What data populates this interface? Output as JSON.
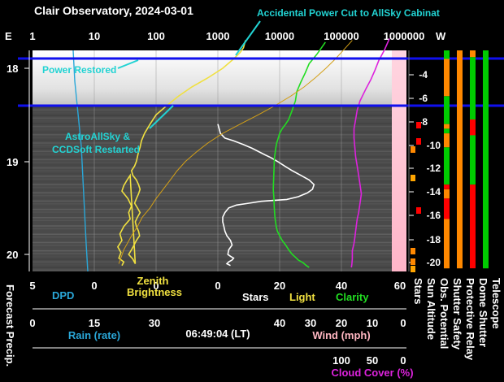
{
  "title": "Clair Observatory, 2024-03-01",
  "time_lt": "06:49:04 (LT)",
  "top_axis": {
    "left_letter": "E",
    "right_letter": "W",
    "ticks": [
      "1",
      "10",
      "100",
      "1000",
      "10000",
      "100000",
      "1000000"
    ]
  },
  "time_axis": {
    "ticks": [
      "18",
      "19",
      "20"
    ]
  },
  "sun_altitude_axis": {
    "ticks": [
      "-4",
      "-6",
      "-8",
      "-10",
      "-12",
      "-14",
      "-16",
      "-18",
      "-20"
    ]
  },
  "annotations": {
    "power_cut": "Accidental Power Cut to AllSky Cabinat",
    "power_restored": "Power Restored",
    "restart_line1": "AstroAllSky &",
    "restart_line2": "CCDSoft Restarted"
  },
  "bottom_scale1": {
    "ticks": [
      "5",
      "0",
      "0",
      "0",
      "20",
      "40",
      "60"
    ],
    "labels": {
      "dpd": "DPD",
      "zenith_line1": "Zenith",
      "zenith_line2": "Brightness",
      "stars": "Stars",
      "light": "Light",
      "clarity": "Clarity"
    }
  },
  "rain_scale": {
    "ticks": [
      "0",
      "15",
      "30"
    ],
    "label": "Rain (rate)"
  },
  "wind_scale": {
    "ticks": [
      "40",
      "30",
      "20",
      "10",
      "0"
    ],
    "label": "Wind (mph)"
  },
  "cloud_scale": {
    "ticks": [
      "100",
      "50",
      "0"
    ],
    "label": "Cloud Cover (%)"
  },
  "vertical_labels": {
    "forecast": "Forecast Precip.",
    "stars": "Stars",
    "sun_alt": "Sun Altitude",
    "obs_potential": "Obs. Potential",
    "shutter_safety": "Shutter Safety",
    "protective_relay": "Protective Relay",
    "dome_shutter": "Dome Shutter",
    "telescope": "Telescope"
  },
  "colors": {
    "dpd": "#2aa7d8",
    "zenith": "#f0e040",
    "stars": "#ffffff",
    "light": "#f0e040",
    "clarity": "#22dd22",
    "cloud": "#dd22dd",
    "wind": "#ffb6c1",
    "annotation": "#22d3d3",
    "marker": "#1010ee"
  },
  "chart_data": {
    "type": "line",
    "x_scale": "log",
    "x_range": [
      1,
      1000000
    ],
    "y_label": "",
    "y_range_hours": [
      17.65,
      20.15
    ],
    "markers_hours": [
      17.83,
      18.55
    ],
    "series": [
      {
        "name": "Zenith Brightness",
        "x": [
          2800,
          2600,
          2300,
          1800,
          1200,
          700,
          380,
          230,
          150,
          100,
          80,
          65,
          58,
          55,
          52,
          50,
          48,
          45,
          40,
          42,
          48,
          52,
          55,
          52,
          48,
          45,
          50,
          55,
          50,
          46,
          48,
          52,
          54,
          48,
          44,
          40,
          36,
          42,
          46,
          38,
          34,
          30,
          28,
          35,
          40,
          36,
          38,
          30,
          26,
          28,
          24,
          27,
          25,
          30,
          28
        ],
        "y": [
          17.7,
          17.78,
          17.83,
          17.9,
          18.0,
          18.1,
          18.2,
          18.3,
          18.4,
          18.5,
          18.6,
          18.7,
          18.78,
          18.85,
          18.9,
          18.95,
          19.0,
          19.05,
          19.1,
          19.15,
          19.2,
          19.25,
          19.3,
          19.35,
          19.4,
          19.45,
          19.5,
          19.55,
          19.6,
          19.65,
          19.7,
          19.75,
          19.8,
          19.85,
          19.9,
          19.95,
          20.0,
          20.05,
          20.1,
          19.15,
          19.2,
          19.26,
          19.32,
          19.4,
          19.48,
          19.55,
          19.62,
          19.7,
          19.78,
          19.85,
          19.92,
          19.98,
          20.04,
          20.08,
          20.12
        ]
      },
      {
        "name": "Stars",
        "x": [
          1000,
          1050,
          1100,
          1300,
          1800,
          2600,
          3600,
          4700,
          5800,
          7200,
          9200,
          12000,
          16000,
          22000,
          30000,
          36000,
          34000,
          28000,
          20000,
          13000,
          8000,
          5000,
          3200,
          2000,
          1500,
          1300,
          1200,
          1200,
          1250,
          1300,
          1400,
          1600,
          1700,
          1500,
          1450,
          1600,
          1800,
          1700,
          1500,
          1400,
          1600
        ],
        "y": [
          18.6,
          18.65,
          18.7,
          18.75,
          18.78,
          18.82,
          18.86,
          18.9,
          18.93,
          18.96,
          19.0,
          19.05,
          19.1,
          19.15,
          19.2,
          19.25,
          19.3,
          19.34,
          19.38,
          19.41,
          19.42,
          19.43,
          19.45,
          19.47,
          19.5,
          19.55,
          19.6,
          19.65,
          19.7,
          19.75,
          19.8,
          19.85,
          19.9,
          19.95,
          20.0,
          20.02,
          20.04,
          20.06,
          20.08,
          20.1,
          20.12
        ]
      },
      {
        "name": "Clarity",
        "x": [
          55000,
          40000,
          30000,
          26000,
          22000,
          19000,
          18000,
          16000,
          14000,
          12500,
          11000,
          10000,
          9500,
          9000,
          8700,
          8500,
          8300,
          8200,
          8100,
          8000,
          7900,
          8100,
          8200,
          8400,
          8800,
          9200,
          10000,
          11000,
          12500,
          14000,
          16000,
          18000,
          20000,
          24000,
          27000,
          30000
        ],
        "y": [
          17.72,
          17.85,
          17.95,
          18.05,
          18.15,
          18.25,
          18.35,
          18.45,
          18.55,
          18.6,
          18.65,
          18.7,
          18.75,
          18.8,
          18.85,
          18.9,
          18.95,
          19.0,
          19.1,
          19.2,
          19.3,
          19.4,
          19.5,
          19.6,
          19.7,
          19.75,
          19.8,
          19.85,
          19.9,
          19.95,
          20.0,
          20.03,
          20.06,
          20.09,
          20.12,
          20.14
        ]
      },
      {
        "name": "Cloud Cover",
        "x": [
          600000,
          500000,
          400000,
          350000,
          300000,
          250000,
          200000,
          180000,
          170000,
          160000,
          160000,
          165000,
          170000,
          180000,
          190000,
          200000,
          210000,
          200000,
          190000,
          180000,
          175000,
          170000,
          165000,
          160000,
          155000,
          150000,
          150000,
          150000,
          148000,
          145000
        ],
        "y": [
          17.68,
          17.8,
          17.92,
          18.02,
          18.12,
          18.22,
          18.35,
          18.45,
          18.55,
          18.65,
          18.75,
          18.85,
          18.95,
          19.05,
          19.15,
          19.25,
          19.35,
          19.45,
          19.55,
          19.62,
          19.68,
          19.75,
          19.82,
          19.88,
          19.92,
          19.96,
          20.0,
          20.05,
          20.1,
          20.14
        ]
      },
      {
        "name": "Sun Altitude",
        "x": [
          150000,
          110000,
          80000,
          56000,
          38000,
          25000,
          15000,
          8500,
          4500,
          2300,
          1200,
          700,
          450,
          300,
          220,
          170,
          130,
          100,
          80,
          60,
          50,
          40,
          30,
          25
        ],
        "y": [
          17.7,
          17.8,
          17.9,
          18.0,
          18.1,
          18.2,
          18.3,
          18.4,
          18.5,
          18.6,
          18.7,
          18.8,
          18.9,
          19.0,
          19.1,
          19.2,
          19.3,
          19.4,
          19.5,
          19.6,
          19.7,
          19.8,
          19.95,
          20.1
        ]
      }
    ],
    "status_bars": [
      {
        "name": "Obs. Potential",
        "segments": [
          [
            "#00cc00",
            17.7,
            17.9
          ],
          [
            "#ff8800",
            17.9,
            18.3
          ],
          [
            "#00cc00",
            18.3,
            18.6
          ],
          [
            "#ff8800",
            18.6,
            18.65
          ],
          [
            "#00cc00",
            18.65,
            18.7
          ],
          [
            "#ff8800",
            18.7,
            18.85
          ],
          [
            "#00cc00",
            18.85,
            19.25
          ],
          [
            "#ff0000",
            19.25,
            19.3
          ],
          [
            "#ff8800",
            19.3,
            19.4
          ],
          [
            "#ff0000",
            19.4,
            19.62
          ],
          [
            "#ff8800",
            19.62,
            20.15
          ]
        ]
      },
      {
        "name": "Shutter Safety",
        "segments": [
          [
            "#ff8800",
            17.7,
            20.15
          ]
        ]
      },
      {
        "name": "Protective Relay",
        "segments": [
          [
            "#ff0000",
            17.7,
            17.76
          ],
          [
            "#ff8800",
            17.76,
            17.88
          ],
          [
            "#00cc00",
            17.88,
            18.55
          ],
          [
            "#ff0000",
            18.55,
            18.72
          ],
          [
            "#00cc00",
            18.72,
            19.25
          ],
          [
            "#ff0000",
            19.25,
            20.15
          ]
        ]
      },
      {
        "name": "Dome Shutter",
        "segments": [
          [
            "#00cc00",
            17.7,
            20.15
          ]
        ]
      }
    ]
  }
}
